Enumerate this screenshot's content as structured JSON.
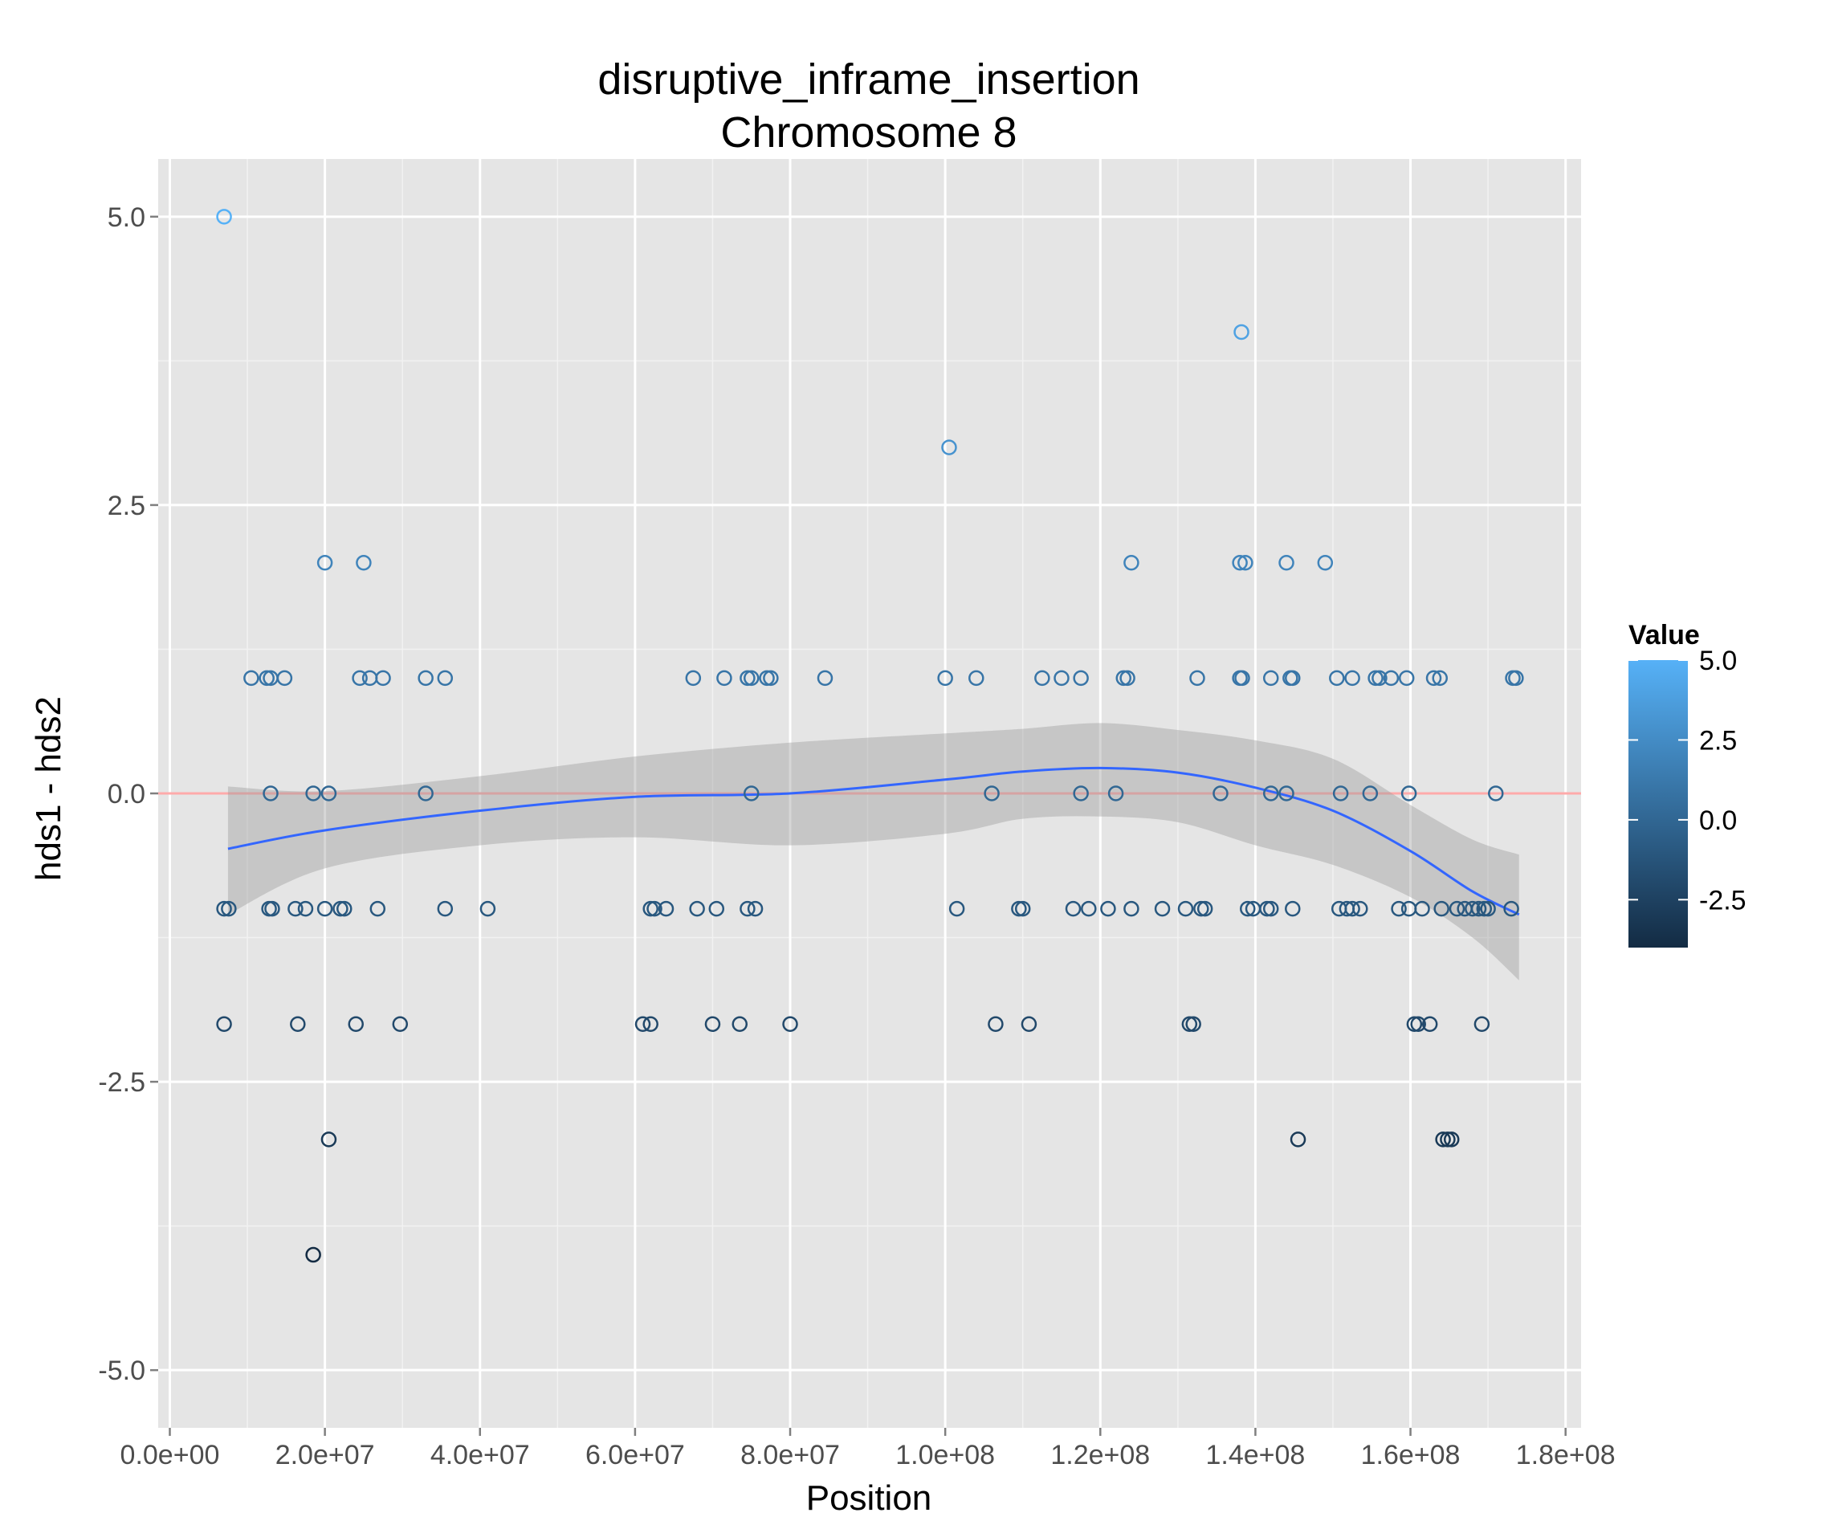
{
  "chart_data": {
    "type": "scatter",
    "title": "disruptive_inframe_insertion",
    "subtitle": "Chromosome 8",
    "xlabel": "Position",
    "ylabel": "hds1 - hds2",
    "xlim": [
      -1500000,
      182000000
    ],
    "ylim": [
      -5.5,
      5.5
    ],
    "x_ticks": [
      {
        "value": 0,
        "label": "0.0e+00"
      },
      {
        "value": 20000000,
        "label": "2.0e+07"
      },
      {
        "value": 40000000,
        "label": "4.0e+07"
      },
      {
        "value": 60000000,
        "label": "6.0e+07"
      },
      {
        "value": 80000000,
        "label": "8.0e+07"
      },
      {
        "value": 100000000,
        "label": "1.0e+08"
      },
      {
        "value": 120000000,
        "label": "1.2e+08"
      },
      {
        "value": 140000000,
        "label": "1.4e+08"
      },
      {
        "value": 160000000,
        "label": "1.6e+08"
      },
      {
        "value": 180000000,
        "label": "1.8e+08"
      }
    ],
    "y_ticks": [
      {
        "value": 5,
        "label": "5.0"
      },
      {
        "value": 2.5,
        "label": "2.5"
      },
      {
        "value": 0,
        "label": "0.0"
      },
      {
        "value": -2.5,
        "label": "-2.5"
      },
      {
        "value": -5,
        "label": "-5.0"
      }
    ],
    "grid": true,
    "reference_line": {
      "y": 0,
      "color": "#ffaaaa"
    },
    "legend": {
      "title": "Value",
      "placement": "right",
      "type": "colorbar",
      "range": [
        -4,
        5
      ],
      "low_color": "#132b43",
      "high_color": "#56b1f7",
      "ticks": [
        {
          "value": 5,
          "label": "5.0"
        },
        {
          "value": 2.5,
          "label": "2.5"
        },
        {
          "value": 0,
          "label": "0.0"
        },
        {
          "value": -2.5,
          "label": "-2.5"
        }
      ]
    },
    "smooth": {
      "color": "#3366ff",
      "band_color": "#999999",
      "x": [
        7500000,
        20000000,
        40000000,
        60000000,
        80000000,
        100000000,
        110000000,
        120000000,
        130000000,
        140000000,
        150000000,
        160000000,
        168000000,
        174000000
      ],
      "y": [
        -0.48,
        -0.32,
        -0.15,
        -0.03,
        0.0,
        0.12,
        0.19,
        0.22,
        0.18,
        0.05,
        -0.15,
        -0.5,
        -0.85,
        -1.05
      ],
      "lower": [
        -1.05,
        -0.65,
        -0.45,
        -0.38,
        -0.45,
        -0.35,
        -0.22,
        -0.2,
        -0.25,
        -0.45,
        -0.62,
        -0.9,
        -1.25,
        -1.62
      ],
      "upper": [
        0.06,
        0.02,
        0.15,
        0.32,
        0.44,
        0.52,
        0.56,
        0.61,
        0.55,
        0.46,
        0.3,
        -0.1,
        -0.4,
        -0.53
      ]
    },
    "points": [
      {
        "x": 7000000,
        "y": 5
      },
      {
        "x": 7000000,
        "y": -1
      },
      {
        "x": 7600000,
        "y": -1
      },
      {
        "x": 7000000,
        "y": -2
      },
      {
        "x": 10500000,
        "y": 1
      },
      {
        "x": 12500000,
        "y": 1
      },
      {
        "x": 13000000,
        "y": 1
      },
      {
        "x": 14800000,
        "y": 1
      },
      {
        "x": 12800000,
        "y": -1
      },
      {
        "x": 13200000,
        "y": -1
      },
      {
        "x": 13000000,
        "y": 0
      },
      {
        "x": 16200000,
        "y": -1
      },
      {
        "x": 17500000,
        "y": -1
      },
      {
        "x": 18500000,
        "y": 0
      },
      {
        "x": 20500000,
        "y": 0
      },
      {
        "x": 16500000,
        "y": -2
      },
      {
        "x": 18500000,
        "y": -4
      },
      {
        "x": 20000000,
        "y": 2
      },
      {
        "x": 20000000,
        "y": -1
      },
      {
        "x": 20500000,
        "y": -3
      },
      {
        "x": 22000000,
        "y": -1
      },
      {
        "x": 22500000,
        "y": -1
      },
      {
        "x": 24000000,
        "y": -2
      },
      {
        "x": 25000000,
        "y": 2
      },
      {
        "x": 24500000,
        "y": 1
      },
      {
        "x": 25800000,
        "y": 1
      },
      {
        "x": 27500000,
        "y": 1
      },
      {
        "x": 26800000,
        "y": -1
      },
      {
        "x": 29700000,
        "y": -2
      },
      {
        "x": 33000000,
        "y": 1
      },
      {
        "x": 33000000,
        "y": 0
      },
      {
        "x": 35500000,
        "y": 1
      },
      {
        "x": 35500000,
        "y": -1
      },
      {
        "x": 41000000,
        "y": -1
      },
      {
        "x": 61000000,
        "y": -2
      },
      {
        "x": 62000000,
        "y": -2
      },
      {
        "x": 62000000,
        "y": -1
      },
      {
        "x": 62500000,
        "y": -1
      },
      {
        "x": 64000000,
        "y": -1
      },
      {
        "x": 67500000,
        "y": 1
      },
      {
        "x": 68000000,
        "y": -1
      },
      {
        "x": 70000000,
        "y": -2
      },
      {
        "x": 70500000,
        "y": -1
      },
      {
        "x": 71500000,
        "y": 1
      },
      {
        "x": 73500000,
        "y": -2
      },
      {
        "x": 74500000,
        "y": 1
      },
      {
        "x": 75000000,
        "y": 1
      },
      {
        "x": 74500000,
        "y": -1
      },
      {
        "x": 75500000,
        "y": -1
      },
      {
        "x": 75000000,
        "y": 0
      },
      {
        "x": 77000000,
        "y": 1
      },
      {
        "x": 77500000,
        "y": 1
      },
      {
        "x": 80000000,
        "y": -2
      },
      {
        "x": 84500000,
        "y": 1
      },
      {
        "x": 100500000,
        "y": 3
      },
      {
        "x": 100000000,
        "y": 1
      },
      {
        "x": 101500000,
        "y": -1
      },
      {
        "x": 104000000,
        "y": 1
      },
      {
        "x": 106000000,
        "y": 0
      },
      {
        "x": 106500000,
        "y": -2
      },
      {
        "x": 109500000,
        "y": -1
      },
      {
        "x": 110000000,
        "y": -1
      },
      {
        "x": 110800000,
        "y": -2
      },
      {
        "x": 112500000,
        "y": 1
      },
      {
        "x": 115000000,
        "y": 1
      },
      {
        "x": 116500000,
        "y": -1
      },
      {
        "x": 117500000,
        "y": 1
      },
      {
        "x": 117500000,
        "y": 0
      },
      {
        "x": 118500000,
        "y": -1
      },
      {
        "x": 121000000,
        "y": -1
      },
      {
        "x": 122000000,
        "y": 0
      },
      {
        "x": 123000000,
        "y": 1
      },
      {
        "x": 123500000,
        "y": 1
      },
      {
        "x": 124000000,
        "y": 2
      },
      {
        "x": 124000000,
        "y": -1
      },
      {
        "x": 128000000,
        "y": -1
      },
      {
        "x": 131000000,
        "y": -1
      },
      {
        "x": 131500000,
        "y": -2
      },
      {
        "x": 132000000,
        "y": -2
      },
      {
        "x": 132500000,
        "y": 1
      },
      {
        "x": 133000000,
        "y": -1
      },
      {
        "x": 133500000,
        "y": -1
      },
      {
        "x": 135500000,
        "y": 0
      },
      {
        "x": 138200000,
        "y": 4
      },
      {
        "x": 138000000,
        "y": 2
      },
      {
        "x": 138700000,
        "y": 2
      },
      {
        "x": 138000000,
        "y": 1
      },
      {
        "x": 138300000,
        "y": 1
      },
      {
        "x": 139000000,
        "y": -1
      },
      {
        "x": 139700000,
        "y": -1
      },
      {
        "x": 141500000,
        "y": -1
      },
      {
        "x": 142000000,
        "y": 1
      },
      {
        "x": 142000000,
        "y": 0
      },
      {
        "x": 142000000,
        "y": -1
      },
      {
        "x": 144000000,
        "y": 2
      },
      {
        "x": 144500000,
        "y": 1
      },
      {
        "x": 144800000,
        "y": 1
      },
      {
        "x": 144000000,
        "y": 0
      },
      {
        "x": 144800000,
        "y": -1
      },
      {
        "x": 145500000,
        "y": -3
      },
      {
        "x": 149000000,
        "y": 2
      },
      {
        "x": 150500000,
        "y": 1
      },
      {
        "x": 150800000,
        "y": -1
      },
      {
        "x": 151000000,
        "y": 0
      },
      {
        "x": 151800000,
        "y": -1
      },
      {
        "x": 152500000,
        "y": 1
      },
      {
        "x": 152500000,
        "y": -1
      },
      {
        "x": 153500000,
        "y": -1
      },
      {
        "x": 154800000,
        "y": 0
      },
      {
        "x": 155500000,
        "y": 1
      },
      {
        "x": 156000000,
        "y": 1
      },
      {
        "x": 157500000,
        "y": 1
      },
      {
        "x": 158500000,
        "y": -1
      },
      {
        "x": 159500000,
        "y": 1
      },
      {
        "x": 159800000,
        "y": 0
      },
      {
        "x": 159800000,
        "y": -1
      },
      {
        "x": 160500000,
        "y": -2
      },
      {
        "x": 161000000,
        "y": -2
      },
      {
        "x": 161500000,
        "y": -1
      },
      {
        "x": 162500000,
        "y": -2
      },
      {
        "x": 163000000,
        "y": 1
      },
      {
        "x": 163800000,
        "y": 1
      },
      {
        "x": 164000000,
        "y": -1
      },
      {
        "x": 164200000,
        "y": -3
      },
      {
        "x": 164800000,
        "y": -3
      },
      {
        "x": 165300000,
        "y": -3
      },
      {
        "x": 166000000,
        "y": -1
      },
      {
        "x": 167000000,
        "y": -1
      },
      {
        "x": 168000000,
        "y": -1
      },
      {
        "x": 168800000,
        "y": -1
      },
      {
        "x": 169200000,
        "y": -2
      },
      {
        "x": 169500000,
        "y": -1
      },
      {
        "x": 170000000,
        "y": -1
      },
      {
        "x": 171000000,
        "y": 0
      },
      {
        "x": 173000000,
        "y": -1
      },
      {
        "x": 173200000,
        "y": 1
      },
      {
        "x": 173600000,
        "y": 1
      }
    ]
  }
}
